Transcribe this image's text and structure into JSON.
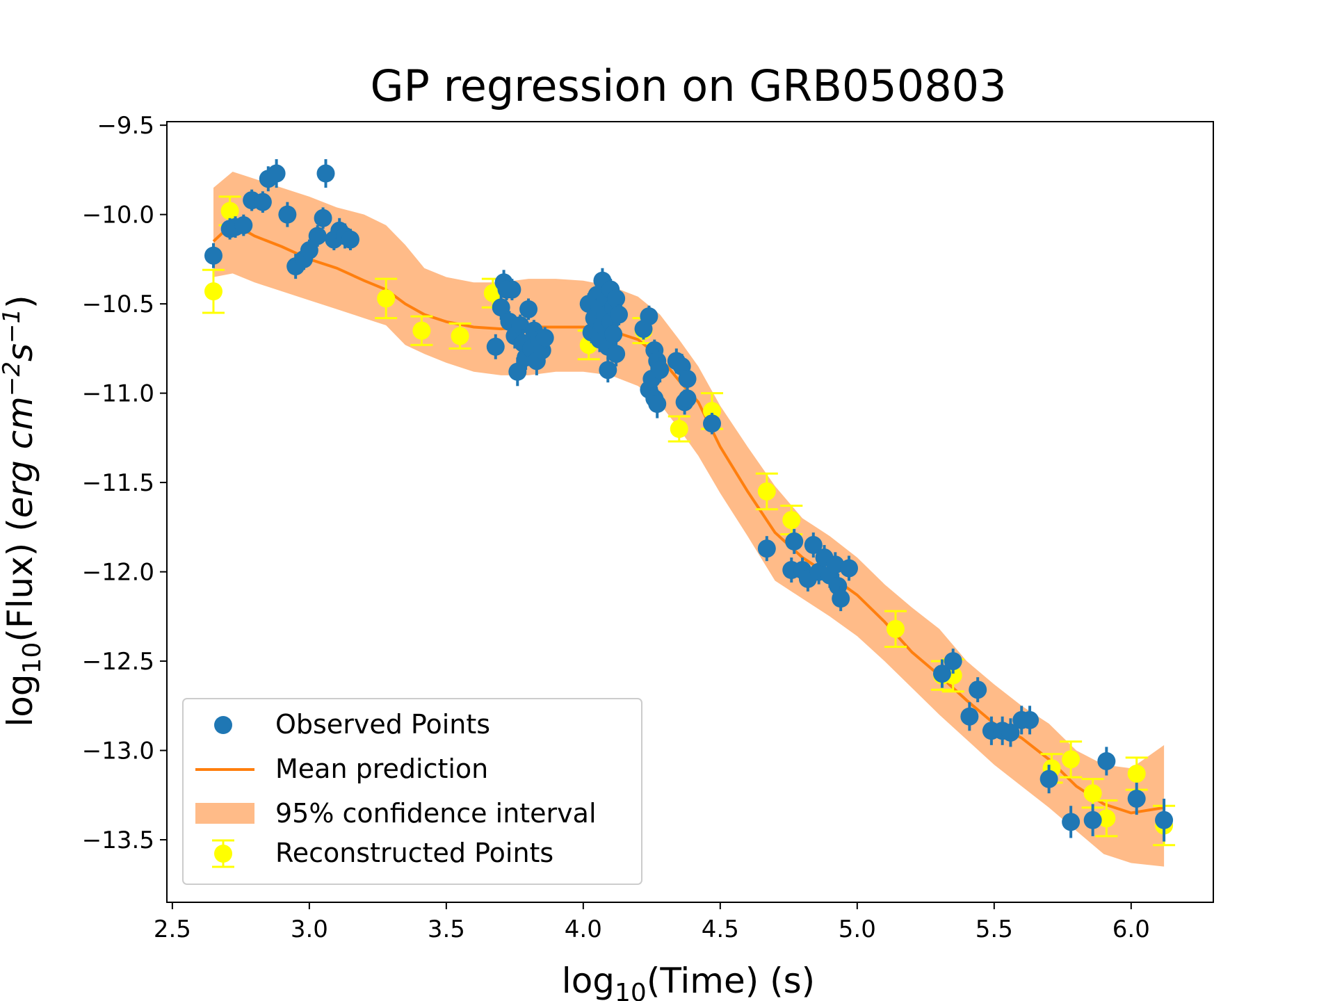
{
  "chart_data": {
    "type": "scatter",
    "title": "GP regression on GRB050803",
    "xlabel": {
      "prefix": "log",
      "sub": "10",
      "suffix": "(Time) (s)"
    },
    "ylabel": {
      "prefix": "log",
      "sub": "10",
      "mid": "(Flux) (",
      "units": "erg cm",
      "exp1": "−2",
      "s": "s",
      "exp2": "−1",
      "close": ")"
    },
    "xlim": [
      2.48,
      6.3
    ],
    "ylim": [
      -13.85,
      -9.48
    ],
    "xticks": [
      2.5,
      3.0,
      3.5,
      4.0,
      4.5,
      5.0,
      5.5,
      6.0
    ],
    "xtick_labels": [
      "2.5",
      "3.0",
      "3.5",
      "4.0",
      "4.5",
      "5.0",
      "5.5",
      "6.0"
    ],
    "yticks": [
      -9.5,
      -10.0,
      -10.5,
      -11.0,
      -11.5,
      -12.0,
      -12.5,
      -13.0,
      -13.5
    ],
    "ytick_labels": [
      "−9.5",
      "−10.0",
      "−10.5",
      "−11.0",
      "−11.5",
      "−12.0",
      "−12.5",
      "−13.0",
      "−13.5"
    ],
    "legend": {
      "position": "lower-left",
      "observed": "Observed Points",
      "mean": "Mean prediction",
      "ci": "95% confidence interval",
      "reconstructed": "Reconstructed Points"
    },
    "colors": {
      "observed": "#1f77b4",
      "mean": "#ff7f0e",
      "ci": "#ffbb88",
      "reconstructed": "#ffff00"
    },
    "mean_prediction": {
      "x": [
        2.65,
        2.72,
        2.8,
        2.9,
        3.0,
        3.1,
        3.2,
        3.28,
        3.35,
        3.42,
        3.5,
        3.6,
        3.7,
        3.8,
        3.9,
        4.0,
        4.1,
        4.2,
        4.28,
        4.35,
        4.42,
        4.5,
        4.6,
        4.7,
        4.8,
        4.9,
        5.0,
        5.1,
        5.2,
        5.3,
        5.4,
        5.5,
        5.6,
        5.7,
        5.8,
        5.9,
        6.0,
        6.12
      ],
      "y": [
        -10.15,
        -10.05,
        -10.12,
        -10.18,
        -10.25,
        -10.3,
        -10.37,
        -10.42,
        -10.5,
        -10.56,
        -10.6,
        -10.63,
        -10.64,
        -10.63,
        -10.63,
        -10.63,
        -10.65,
        -10.7,
        -10.8,
        -10.93,
        -11.05,
        -11.3,
        -11.55,
        -11.78,
        -11.92,
        -12.02,
        -12.13,
        -12.28,
        -12.45,
        -12.58,
        -12.72,
        -12.85,
        -12.93,
        -13.05,
        -13.2,
        -13.3,
        -13.35,
        -13.32
      ]
    },
    "confidence_interval": {
      "x": [
        2.65,
        2.72,
        2.8,
        2.9,
        3.0,
        3.1,
        3.2,
        3.28,
        3.35,
        3.42,
        3.5,
        3.6,
        3.7,
        3.8,
        3.9,
        4.0,
        4.1,
        4.2,
        4.28,
        4.35,
        4.42,
        4.5,
        4.6,
        4.7,
        4.8,
        4.9,
        5.0,
        5.1,
        5.2,
        5.3,
        5.4,
        5.5,
        5.6,
        5.7,
        5.8,
        5.9,
        6.0,
        6.12
      ],
      "upper": [
        -9.85,
        -9.76,
        -9.8,
        -9.85,
        -9.9,
        -9.96,
        -10.0,
        -10.06,
        -10.17,
        -10.3,
        -10.35,
        -10.38,
        -10.38,
        -10.36,
        -10.36,
        -10.37,
        -10.4,
        -10.46,
        -10.56,
        -10.7,
        -10.85,
        -11.07,
        -11.3,
        -11.52,
        -11.7,
        -11.8,
        -11.92,
        -12.07,
        -12.2,
        -12.32,
        -12.5,
        -12.63,
        -12.75,
        -12.85,
        -13.0,
        -13.08,
        -13.1,
        -12.97
      ],
      "lower": [
        -10.35,
        -10.33,
        -10.38,
        -10.43,
        -10.48,
        -10.53,
        -10.58,
        -10.62,
        -10.73,
        -10.78,
        -10.83,
        -10.88,
        -10.9,
        -10.9,
        -10.88,
        -10.88,
        -10.9,
        -10.96,
        -11.06,
        -11.2,
        -11.35,
        -11.56,
        -11.8,
        -12.05,
        -12.15,
        -12.25,
        -12.36,
        -12.5,
        -12.65,
        -12.8,
        -12.94,
        -13.08,
        -13.2,
        -13.32,
        -13.45,
        -13.58,
        -13.63,
        -13.65
      ]
    },
    "observed_points": [
      [
        2.65,
        -10.23,
        0.07
      ],
      [
        2.71,
        -10.08,
        0.06
      ],
      [
        2.73,
        -10.07,
        0.06
      ],
      [
        2.76,
        -10.06,
        0.06
      ],
      [
        2.79,
        -9.92,
        0.06
      ],
      [
        2.83,
        -9.93,
        0.06
      ],
      [
        2.85,
        -9.8,
        0.07
      ],
      [
        2.88,
        -9.77,
        0.08
      ],
      [
        2.92,
        -10.0,
        0.07
      ],
      [
        2.95,
        -10.29,
        0.07
      ],
      [
        2.98,
        -10.25,
        0.06
      ],
      [
        3.0,
        -10.2,
        0.06
      ],
      [
        3.03,
        -10.12,
        0.06
      ],
      [
        3.05,
        -10.02,
        0.06
      ],
      [
        3.06,
        -9.77,
        0.08
      ],
      [
        3.09,
        -10.14,
        0.06
      ],
      [
        3.11,
        -10.09,
        0.07
      ],
      [
        3.13,
        -10.12,
        0.07
      ],
      [
        3.15,
        -10.14,
        0.06
      ],
      [
        3.68,
        -10.74,
        0.07
      ],
      [
        3.7,
        -10.52,
        0.07
      ],
      [
        3.71,
        -10.38,
        0.07
      ],
      [
        3.72,
        -10.42,
        0.06
      ],
      [
        3.73,
        -10.6,
        0.06
      ],
      [
        3.74,
        -10.42,
        0.06
      ],
      [
        3.75,
        -10.68,
        0.07
      ],
      [
        3.76,
        -10.88,
        0.08
      ],
      [
        3.77,
        -10.62,
        0.06
      ],
      [
        3.78,
        -10.72,
        0.08
      ],
      [
        3.79,
        -10.8,
        0.07
      ],
      [
        3.8,
        -10.53,
        0.06
      ],
      [
        3.81,
        -10.75,
        0.07
      ],
      [
        3.82,
        -10.65,
        0.06
      ],
      [
        3.83,
        -10.82,
        0.08
      ],
      [
        3.84,
        -10.7,
        0.07
      ],
      [
        3.85,
        -10.76,
        0.07
      ],
      [
        3.86,
        -10.69,
        0.06
      ],
      [
        4.02,
        -10.5,
        0.06
      ],
      [
        4.03,
        -10.66,
        0.06
      ],
      [
        4.04,
        -10.58,
        0.06
      ],
      [
        4.05,
        -10.45,
        0.06
      ],
      [
        4.06,
        -10.52,
        0.07
      ],
      [
        4.06,
        -10.7,
        0.07
      ],
      [
        4.07,
        -10.37,
        0.07
      ],
      [
        4.07,
        -10.62,
        0.06
      ],
      [
        4.08,
        -10.48,
        0.06
      ],
      [
        4.08,
        -10.56,
        0.06
      ],
      [
        4.09,
        -10.74,
        0.07
      ],
      [
        4.09,
        -10.87,
        0.07
      ],
      [
        4.1,
        -10.42,
        0.06
      ],
      [
        4.1,
        -10.6,
        0.06
      ],
      [
        4.11,
        -10.52,
        0.06
      ],
      [
        4.11,
        -10.67,
        0.07
      ],
      [
        4.12,
        -10.47,
        0.06
      ],
      [
        4.12,
        -10.78,
        0.07
      ],
      [
        4.13,
        -10.56,
        0.06
      ],
      [
        4.22,
        -10.64,
        0.06
      ],
      [
        4.24,
        -10.57,
        0.06
      ],
      [
        4.24,
        -10.98,
        0.07
      ],
      [
        4.25,
        -10.92,
        0.07
      ],
      [
        4.26,
        -10.76,
        0.06
      ],
      [
        4.26,
        -11.03,
        0.07
      ],
      [
        4.27,
        -10.82,
        0.07
      ],
      [
        4.27,
        -11.06,
        0.08
      ],
      [
        4.28,
        -10.87,
        0.07
      ],
      [
        4.34,
        -10.82,
        0.07
      ],
      [
        4.36,
        -10.85,
        0.07
      ],
      [
        4.37,
        -11.05,
        0.07
      ],
      [
        4.38,
        -10.92,
        0.07
      ],
      [
        4.38,
        -11.03,
        0.06
      ],
      [
        4.47,
        -11.17,
        0.06
      ],
      [
        4.67,
        -11.87,
        0.07
      ],
      [
        4.76,
        -11.99,
        0.07
      ],
      [
        4.77,
        -11.83,
        0.07
      ],
      [
        4.8,
        -11.99,
        0.07
      ],
      [
        4.82,
        -12.04,
        0.07
      ],
      [
        4.84,
        -11.85,
        0.07
      ],
      [
        4.86,
        -12.0,
        0.07
      ],
      [
        4.88,
        -11.92,
        0.07
      ],
      [
        4.9,
        -12.02,
        0.07
      ],
      [
        4.92,
        -11.96,
        0.07
      ],
      [
        4.93,
        -12.08,
        0.07
      ],
      [
        4.94,
        -12.15,
        0.07
      ],
      [
        4.97,
        -11.98,
        0.07
      ],
      [
        5.31,
        -12.57,
        0.08
      ],
      [
        5.35,
        -12.5,
        0.07
      ],
      [
        5.41,
        -12.81,
        0.08
      ],
      [
        5.44,
        -12.66,
        0.07
      ],
      [
        5.49,
        -12.89,
        0.08
      ],
      [
        5.53,
        -12.89,
        0.08
      ],
      [
        5.56,
        -12.9,
        0.08
      ],
      [
        5.6,
        -12.83,
        0.08
      ],
      [
        5.63,
        -12.83,
        0.08
      ],
      [
        5.7,
        -13.16,
        0.08
      ],
      [
        5.78,
        -13.4,
        0.09
      ],
      [
        5.86,
        -13.39,
        0.09
      ],
      [
        5.91,
        -13.06,
        0.08
      ],
      [
        6.02,
        -13.27,
        0.09
      ],
      [
        6.12,
        -13.39,
        0.12
      ]
    ],
    "reconstructed_points": [
      [
        2.65,
        -10.43,
        0.12
      ],
      [
        2.71,
        -9.98,
        0.08
      ],
      [
        3.28,
        -10.47,
        0.11
      ],
      [
        3.41,
        -10.65,
        0.08
      ],
      [
        3.55,
        -10.68,
        0.07
      ],
      [
        3.67,
        -10.44,
        0.08
      ],
      [
        4.02,
        -10.73,
        0.08
      ],
      [
        4.22,
        -10.65,
        0.07
      ],
      [
        4.35,
        -11.2,
        0.07
      ],
      [
        4.47,
        -11.1,
        0.1
      ],
      [
        4.67,
        -11.55,
        0.1
      ],
      [
        4.76,
        -11.71,
        0.08
      ],
      [
        5.14,
        -12.32,
        0.1
      ],
      [
        5.31,
        -12.58,
        0.08
      ],
      [
        5.35,
        -12.58,
        0.09
      ],
      [
        5.71,
        -13.1,
        0.08
      ],
      [
        5.78,
        -13.05,
        0.1
      ],
      [
        5.86,
        -13.24,
        0.08
      ],
      [
        5.91,
        -13.38,
        0.1
      ],
      [
        6.02,
        -13.13,
        0.09
      ],
      [
        6.12,
        -13.42,
        0.11
      ]
    ]
  }
}
